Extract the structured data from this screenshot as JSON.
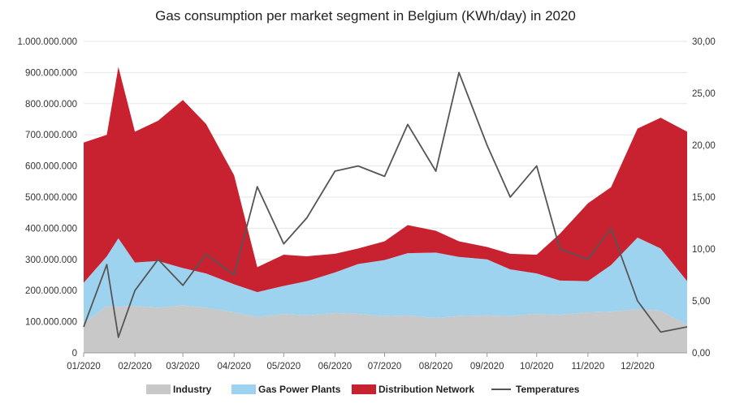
{
  "chart_data": {
    "type": "area",
    "title": "Gas consumption per market segment in Belgium (KWh/day) in 2020",
    "y_left": {
      "range": [
        0,
        1000000000
      ],
      "ticks": [
        0,
        100000000,
        200000000,
        300000000,
        400000000,
        500000000,
        600000000,
        700000000,
        800000000,
        900000000,
        1000000000
      ],
      "tick_labels": [
        "0",
        "100.000.000",
        "200.000.000",
        "300.000.000",
        "400.000.000",
        "500.000.000",
        "600.000.000",
        "700.000.000",
        "800.000.000",
        "900.000.000",
        "1.000.000.000"
      ]
    },
    "y_right": {
      "range": [
        0,
        30
      ],
      "ticks": [
        0,
        5,
        10,
        15,
        20,
        25,
        30
      ],
      "tick_labels": [
        "0,00",
        "5,00",
        "10,00",
        "15,00",
        "20,00",
        "25,00",
        "30,00"
      ]
    },
    "x": {
      "range": [
        "2020-01-01",
        "2020-12-31"
      ],
      "tick_dates": [
        "2020-01-01",
        "2020-02-01",
        "2020-03-01",
        "2020-04-01",
        "2020-05-01",
        "2020-06-01",
        "2020-07-01",
        "2020-08-01",
        "2020-09-01",
        "2020-10-01",
        "2020-11-01",
        "2020-12-01"
      ],
      "tick_labels": [
        "01/2020",
        "02/2020",
        "03/2020",
        "04/2020",
        "05/2020",
        "06/2020",
        "07/2020",
        "08/2020",
        "09/2020",
        "10/2020",
        "11/2020",
        "12/2020"
      ]
    },
    "grid": true,
    "legend_position": "bottom",
    "stacked": true,
    "dates": [
      "2020-01-01",
      "2020-01-15",
      "2020-01-22",
      "2020-02-01",
      "2020-02-15",
      "2020-03-01",
      "2020-03-15",
      "2020-04-01",
      "2020-04-15",
      "2020-05-01",
      "2020-05-15",
      "2020-06-01",
      "2020-06-15",
      "2020-07-01",
      "2020-07-15",
      "2020-08-01",
      "2020-08-15",
      "2020-09-01",
      "2020-09-15",
      "2020-10-01",
      "2020-10-15",
      "2020-11-01",
      "2020-11-15",
      "2020-12-01",
      "2020-12-15",
      "2020-12-31"
    ],
    "series": [
      {
        "name": "Industry",
        "color": "#c8c8c8",
        "axis": "left",
        "values": [
          95000000,
          150000000,
          148000000,
          150000000,
          145000000,
          152000000,
          145000000,
          130000000,
          115000000,
          125000000,
          120000000,
          128000000,
          125000000,
          118000000,
          120000000,
          112000000,
          118000000,
          120000000,
          118000000,
          125000000,
          122000000,
          130000000,
          132000000,
          140000000,
          135000000,
          90000000
        ]
      },
      {
        "name": "Gas Power Plants",
        "color": "#9ed3f0",
        "axis": "left",
        "values": [
          130000000,
          160000000,
          220000000,
          140000000,
          150000000,
          120000000,
          110000000,
          90000000,
          80000000,
          90000000,
          110000000,
          130000000,
          160000000,
          180000000,
          200000000,
          210000000,
          190000000,
          180000000,
          150000000,
          130000000,
          110000000,
          100000000,
          150000000,
          230000000,
          200000000,
          140000000
        ]
      },
      {
        "name": "Distribution Network",
        "color": "#c8212f",
        "axis": "left",
        "values": [
          450000000,
          390000000,
          550000000,
          420000000,
          450000000,
          540000000,
          480000000,
          350000000,
          80000000,
          100000000,
          80000000,
          60000000,
          50000000,
          60000000,
          90000000,
          70000000,
          50000000,
          40000000,
          50000000,
          60000000,
          150000000,
          250000000,
          250000000,
          350000000,
          420000000,
          480000000
        ]
      },
      {
        "name": "Temperatures",
        "color": "#555555",
        "axis": "right",
        "type": "line",
        "values": [
          2.5,
          8.5,
          1.5,
          6.0,
          9.0,
          6.5,
          9.5,
          7.5,
          16.0,
          10.5,
          13.0,
          17.5,
          18.0,
          17.0,
          22.0,
          17.5,
          27.0,
          20.0,
          15.0,
          18.0,
          10.0,
          9.0,
          12.0,
          5.0,
          2.0,
          2.5
        ]
      }
    ]
  }
}
